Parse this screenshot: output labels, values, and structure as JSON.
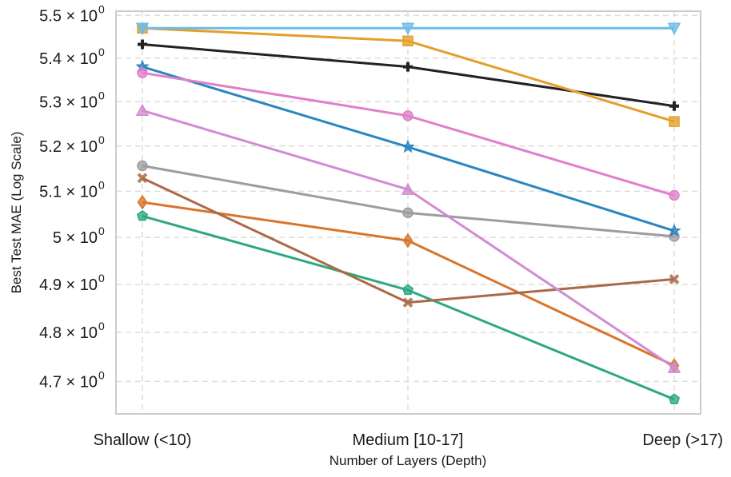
{
  "chart_data": {
    "type": "line",
    "title": "",
    "xlabel": "Number of Layers (Depth)",
    "ylabel": "Best Test MAE (Log Scale)",
    "yscale": "log",
    "categories": [
      "Shallow (<10)",
      "Medium [10-17]",
      "Deep (>17)"
    ],
    "yticks": [
      4.7,
      4.8,
      4.9,
      5.0,
      5.1,
      5.2,
      5.3,
      5.4,
      5.5
    ],
    "ytick_labels": [
      "4.7 × 10",
      "4.8 × 10",
      "4.9 × 10",
      "5 × 10",
      "5.1 × 10",
      "5.2 × 10",
      "5.3 × 10",
      "5.4 × 10",
      "5.5 × 10"
    ],
    "ytick_exponent": "0",
    "ylim": [
      4.635,
      5.51
    ],
    "grid": true,
    "series": [
      {
        "name": "light-blue-triangle-down",
        "color": "#6cbbe8",
        "marker": "triangle-down",
        "values": [
          5.47,
          5.47,
          5.47
        ]
      },
      {
        "name": "orange-square",
        "color": "#e39f2a",
        "marker": "square",
        "values": [
          5.47,
          5.44,
          5.255
        ]
      },
      {
        "name": "black-plus",
        "color": "#222222",
        "marker": "plus",
        "values": [
          5.432,
          5.38,
          5.29
        ]
      },
      {
        "name": "pink-circle",
        "color": "#e07fcb",
        "marker": "circle",
        "values": [
          5.366,
          5.268,
          5.091
        ]
      },
      {
        "name": "blue-star",
        "color": "#2a86bf",
        "marker": "star",
        "values": [
          5.38,
          5.198,
          5.014
        ]
      },
      {
        "name": "violet-triangle-up",
        "color": "#d08cd2",
        "marker": "triangle-up",
        "values": [
          5.28,
          5.104,
          4.728
        ]
      },
      {
        "name": "gray-circle",
        "color": "#9d9d9d",
        "marker": "circle",
        "values": [
          5.156,
          5.053,
          5.002
        ]
      },
      {
        "name": "brown-x",
        "color": "#ab6a47",
        "marker": "x",
        "values": [
          5.129,
          4.862,
          4.911
        ]
      },
      {
        "name": "dark-orange-diamond",
        "color": "#d9742a",
        "marker": "diamond",
        "values": [
          5.076,
          4.993,
          4.732
        ]
      },
      {
        "name": "green-pentagon",
        "color": "#2ca882",
        "marker": "pentagon",
        "values": [
          5.046,
          4.888,
          4.664
        ]
      }
    ]
  }
}
